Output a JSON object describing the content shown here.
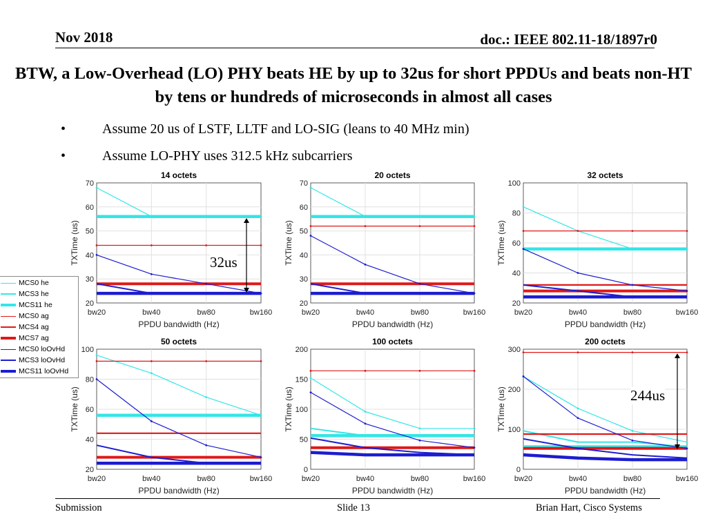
{
  "header": {
    "date": "Nov 2018",
    "doc": "doc.: IEEE 802.11-18/1897r0"
  },
  "title": "BTW, a Low-Overhead (LO) PHY beats HE by up to 32us for short PPDUs and beats non-HT by tens or hundreds of microseconds in almost all cases",
  "bullets": [
    {
      "marker": "•",
      "text": "Assume 20 us of LSTF, LLTF and LO-SIG (leans to 40 MHz min)"
    },
    {
      "marker": "•",
      "text": "Assume LO-PHY uses 312.5 kHz subcarriers"
    }
  ],
  "footer": {
    "left": "Submission",
    "center": "Slide 13",
    "right": "Brian Hart, Cisco Systems"
  },
  "annotations": {
    "a1": "32us",
    "a2": "244us"
  },
  "colors": {
    "cyan": "#33e6e6",
    "red": "#e01818",
    "blue": "#1c1cd0"
  },
  "legend": [
    {
      "label": "MCS0 he",
      "color": "cyan",
      "width": 1,
      "marker": true
    },
    {
      "label": "MCS3 he",
      "color": "cyan",
      "width": 2,
      "marker": false
    },
    {
      "label": "MCS11 he",
      "color": "cyan",
      "width": 4.5,
      "marker": false
    },
    {
      "label": "MCS0 ag",
      "color": "red",
      "width": 1,
      "marker": true
    },
    {
      "label": "MCS4 ag",
      "color": "red",
      "width": 2,
      "marker": false
    },
    {
      "label": "MCS7 ag",
      "color": "red",
      "width": 4.5,
      "marker": false
    },
    {
      "label": "MCS0 loOvHd",
      "color": "blue",
      "width": 1,
      "marker": true
    },
    {
      "label": "MCS3 loOvHd",
      "color": "blue",
      "width": 2,
      "marker": false
    },
    {
      "label": "MCS11 loOvHd",
      "color": "blue",
      "width": 4.5,
      "marker": false
    }
  ],
  "chart_data": [
    {
      "type": "line",
      "title": "14 octets",
      "xlabel": "PPDU bandwidth (Hz)",
      "ylabel": "TXTime (us)",
      "categories": [
        "bw20",
        "bw40",
        "bw80",
        "bw160"
      ],
      "ylim": [
        20,
        70
      ],
      "yticks": [
        20,
        30,
        40,
        50,
        60,
        70
      ],
      "series": [
        {
          "name": "MCS0 he",
          "values": [
            68,
            56,
            56,
            56
          ]
        },
        {
          "name": "MCS3 he",
          "values": [
            56,
            56,
            56,
            56
          ]
        },
        {
          "name": "MCS11 he",
          "values": [
            56,
            56,
            56,
            56
          ]
        },
        {
          "name": "MCS0 ag",
          "values": [
            44,
            44,
            44,
            44
          ]
        },
        {
          "name": "MCS4 ag",
          "values": [
            28,
            28,
            28,
            28
          ]
        },
        {
          "name": "MCS7 ag",
          "values": [
            28,
            28,
            28,
            28
          ]
        },
        {
          "name": "MCS0 loOvHd",
          "values": [
            40,
            32,
            28,
            24
          ]
        },
        {
          "name": "MCS3 loOvHd",
          "values": [
            28,
            24,
            24,
            24
          ]
        },
        {
          "name": "MCS11 loOvHd",
          "values": [
            24,
            24,
            24,
            24
          ]
        }
      ]
    },
    {
      "type": "line",
      "title": "20 octets",
      "xlabel": "PPDU bandwidth (Hz)",
      "ylabel": "TXTime (us)",
      "categories": [
        "bw20",
        "bw40",
        "bw80",
        "bw160"
      ],
      "ylim": [
        20,
        70
      ],
      "yticks": [
        20,
        30,
        40,
        50,
        60,
        70
      ],
      "series": [
        {
          "name": "MCS0 he",
          "values": [
            68,
            56,
            56,
            56
          ]
        },
        {
          "name": "MCS3 he",
          "values": [
            56,
            56,
            56,
            56
          ]
        },
        {
          "name": "MCS11 he",
          "values": [
            56,
            56,
            56,
            56
          ]
        },
        {
          "name": "MCS0 ag",
          "values": [
            52,
            52,
            52,
            52
          ]
        },
        {
          "name": "MCS4 ag",
          "values": [
            28,
            28,
            28,
            28
          ]
        },
        {
          "name": "MCS7 ag",
          "values": [
            28,
            28,
            28,
            28
          ]
        },
        {
          "name": "MCS0 loOvHd",
          "values": [
            48,
            36,
            28,
            24
          ]
        },
        {
          "name": "MCS3 loOvHd",
          "values": [
            28,
            24,
            24,
            24
          ]
        },
        {
          "name": "MCS11 loOvHd",
          "values": [
            24,
            24,
            24,
            24
          ]
        }
      ]
    },
    {
      "type": "line",
      "title": "32 octets",
      "xlabel": "PPDU bandwidth (Hz)",
      "ylabel": "TXTime (us)",
      "categories": [
        "bw20",
        "bw40",
        "bw80",
        "bw160"
      ],
      "ylim": [
        20,
        100
      ],
      "yticks": [
        20,
        40,
        60,
        80,
        100
      ],
      "series": [
        {
          "name": "MCS0 he",
          "values": [
            84,
            68,
            56,
            56
          ]
        },
        {
          "name": "MCS3 he",
          "values": [
            56,
            56,
            56,
            56
          ]
        },
        {
          "name": "MCS11 he",
          "values": [
            56,
            56,
            56,
            56
          ]
        },
        {
          "name": "MCS0 ag",
          "values": [
            68,
            68,
            68,
            68
          ]
        },
        {
          "name": "MCS4 ag",
          "values": [
            32,
            32,
            32,
            32
          ]
        },
        {
          "name": "MCS7 ag",
          "values": [
            28,
            28,
            28,
            28
          ]
        },
        {
          "name": "MCS0 loOvHd",
          "values": [
            56,
            40,
            32,
            28
          ]
        },
        {
          "name": "MCS3 loOvHd",
          "values": [
            32,
            28,
            24,
            24
          ]
        },
        {
          "name": "MCS11 loOvHd",
          "values": [
            24,
            24,
            24,
            24
          ]
        }
      ]
    },
    {
      "type": "line",
      "title": "50 octets",
      "xlabel": "PPDU bandwidth (Hz)",
      "ylabel": "TXTime (us)",
      "categories": [
        "bw20",
        "bw40",
        "bw80",
        "bw160"
      ],
      "ylim": [
        20,
        100
      ],
      "yticks": [
        20,
        40,
        60,
        80,
        100
      ],
      "series": [
        {
          "name": "MCS0 he",
          "values": [
            96,
            84,
            68,
            56
          ]
        },
        {
          "name": "MCS3 he",
          "values": [
            56,
            56,
            56,
            56
          ]
        },
        {
          "name": "MCS11 he",
          "values": [
            56,
            56,
            56,
            56
          ]
        },
        {
          "name": "MCS0 ag",
          "values": [
            92,
            92,
            92,
            92
          ]
        },
        {
          "name": "MCS4 ag",
          "values": [
            44,
            44,
            44,
            44
          ]
        },
        {
          "name": "MCS7 ag",
          "values": [
            28,
            28,
            28,
            28
          ]
        },
        {
          "name": "MCS0 loOvHd",
          "values": [
            80,
            52,
            36,
            28
          ]
        },
        {
          "name": "MCS3 loOvHd",
          "values": [
            36,
            28,
            24,
            24
          ]
        },
        {
          "name": "MCS11 loOvHd",
          "values": [
            24,
            24,
            24,
            24
          ]
        }
      ]
    },
    {
      "type": "line",
      "title": "100 octets",
      "xlabel": "PPDU bandwidth (Hz)",
      "ylabel": "TXTime (us)",
      "categories": [
        "bw20",
        "bw40",
        "bw80",
        "bw160"
      ],
      "ylim": [
        0,
        200
      ],
      "yticks": [
        0,
        50,
        100,
        150,
        200
      ],
      "series": [
        {
          "name": "MCS0 he",
          "values": [
            152,
            96,
            68,
            68
          ]
        },
        {
          "name": "MCS3 he",
          "values": [
            68,
            56,
            56,
            56
          ]
        },
        {
          "name": "MCS11 he",
          "values": [
            56,
            56,
            56,
            56
          ]
        },
        {
          "name": "MCS0 ag",
          "values": [
            164,
            164,
            164,
            164
          ]
        },
        {
          "name": "MCS4 ag",
          "values": [
            36,
            36,
            36,
            36
          ]
        },
        {
          "name": "MCS7 ag",
          "values": [
            36,
            36,
            36,
            36
          ]
        },
        {
          "name": "MCS0 loOvHd",
          "values": [
            128,
            76,
            48,
            36
          ]
        },
        {
          "name": "MCS3 loOvHd",
          "values": [
            52,
            36,
            28,
            24
          ]
        },
        {
          "name": "MCS11 loOvHd",
          "values": [
            28,
            24,
            24,
            24
          ]
        }
      ]
    },
    {
      "type": "line",
      "title": "200 octets",
      "xlabel": "PPDU bandwidth (Hz)",
      "ylabel": "TXTime (us)",
      "categories": [
        "bw20",
        "bw40",
        "bw80",
        "bw160"
      ],
      "ylim": [
        0,
        300
      ],
      "yticks": [
        0,
        100,
        200,
        300
      ],
      "series": [
        {
          "name": "MCS0 he",
          "values": [
            232,
            152,
            96,
            68
          ]
        },
        {
          "name": "MCS3 he",
          "values": [
            96,
            68,
            68,
            56
          ]
        },
        {
          "name": "MCS11 he",
          "values": [
            56,
            56,
            56,
            56
          ]
        },
        {
          "name": "MCS0 ag",
          "values": [
            292,
            292,
            292,
            292
          ]
        },
        {
          "name": "MCS4 ag",
          "values": [
            88,
            88,
            88,
            88
          ]
        },
        {
          "name": "MCS7 ag",
          "values": [
            52,
            52,
            52,
            52
          ]
        },
        {
          "name": "MCS0 loOvHd",
          "values": [
            232,
            128,
            72,
            52
          ]
        },
        {
          "name": "MCS3 loOvHd",
          "values": [
            76,
            52,
            36,
            28
          ]
        },
        {
          "name": "MCS11 loOvHd",
          "values": [
            36,
            28,
            24,
            24
          ]
        }
      ]
    }
  ]
}
